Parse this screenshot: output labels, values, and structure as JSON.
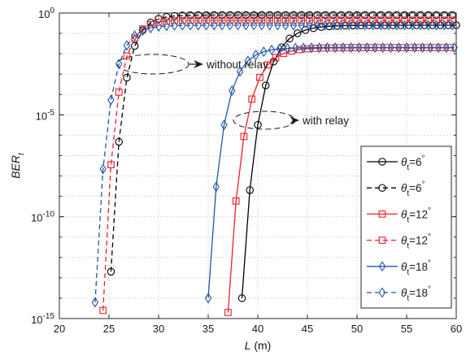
{
  "chart_data": {
    "type": "line",
    "xlabel": "L (m)",
    "ylabel_base": "BER",
    "ylabel_sub": "t",
    "xlim": [
      20,
      60
    ],
    "ylim_log10": [
      -15,
      0
    ],
    "y_scale": "log",
    "grid": true,
    "legend_position": "bottom-right",
    "x_ticks": [
      20,
      25,
      30,
      35,
      40,
      45,
      50,
      55,
      60
    ],
    "y_ticks": [
      {
        "exp": -15,
        "label": "10",
        "sup": "-15"
      },
      {
        "exp": -10,
        "label": "10",
        "sup": "-10"
      },
      {
        "exp": -5,
        "label": "10",
        "sup": "-5"
      },
      {
        "exp": 0,
        "label": "10",
        "sup": "0"
      }
    ],
    "annotations": [
      {
        "text": "without relay"
      },
      {
        "text": "with relay"
      }
    ],
    "series": [
      {
        "name": "θt=6°",
        "theta_label": "θ",
        "sub": "t",
        "value": "=6",
        "deg": "°",
        "color": "#000000",
        "marker": "circle",
        "dash": "solid",
        "x_start": 38.4,
        "x_step": 0.8,
        "count": 28,
        "curve": {
          "L0": 38.4,
          "y0": -14,
          "k": 0.6,
          "sat": -0.6
        }
      },
      {
        "name": "θt=6°",
        "theta_label": "θ",
        "sub": "t",
        "value": "=6",
        "deg": "°",
        "color": "#000000",
        "marker": "circle",
        "dash": "dashed",
        "x_start": 25.2,
        "x_step": 0.8,
        "count": 44,
        "curve": {
          "L0": 25.2,
          "y0": -12.7,
          "k": 0.84,
          "sat": -0.1
        }
      },
      {
        "name": "θt=12°",
        "theta_label": "θ",
        "sub": "t",
        "value": "=12",
        "deg": "°",
        "color": "#e8202a",
        "marker": "square",
        "dash": "solid",
        "x_start": 37.0,
        "x_step": 0.8,
        "count": 30,
        "curve": {
          "L0": 37.0,
          "y0": -14.7,
          "k": 0.65,
          "sat": -1.7
        }
      },
      {
        "name": "θt=12°",
        "theta_label": "θ",
        "sub": "t",
        "value": "=12",
        "deg": "°",
        "color": "#e8202a",
        "marker": "square",
        "dash": "dashed",
        "x_start": 24.4,
        "x_step": 0.8,
        "count": 45,
        "curve": {
          "L0": 24.4,
          "y0": -14.6,
          "k": 0.83,
          "sat": -0.35
        }
      },
      {
        "name": "θt=18°",
        "theta_label": "θ",
        "sub": "t",
        "value": "=18",
        "deg": "°",
        "color": "#2156a8",
        "marker": "diamond",
        "dash": "solid",
        "x_start": 35.0,
        "x_step": 0.8,
        "count": 32,
        "curve": {
          "L0": 35.0,
          "y0": -14,
          "k": 0.7,
          "sat": -1.7
        }
      },
      {
        "name": "θt=18°",
        "theta_label": "θ",
        "sub": "t",
        "value": "=18",
        "deg": "°",
        "color": "#2156a8",
        "marker": "diamond",
        "dash": "dashed",
        "x_start": 23.6,
        "x_step": 0.8,
        "count": 46,
        "curve": {
          "L0": 23.6,
          "y0": -14.2,
          "k": 0.78,
          "sat": -0.6
        }
      }
    ]
  }
}
